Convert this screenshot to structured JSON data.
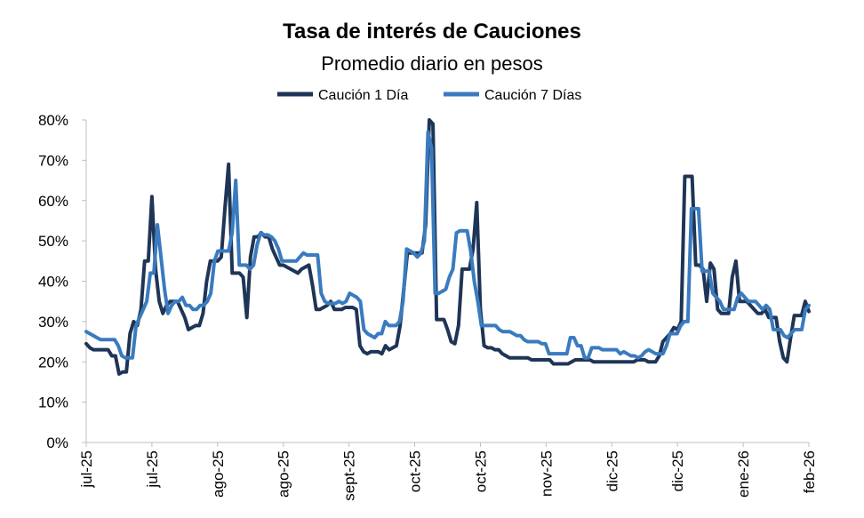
{
  "chart_data": {
    "type": "line",
    "title": "Tasa de interés de Cauciones",
    "subtitle": "Promedio diario en pesos",
    "xlabel": "",
    "ylabel": "",
    "ylim": [
      0,
      80
    ],
    "y_ticks": [
      "0%",
      "10%",
      "20%",
      "30%",
      "40%",
      "50%",
      "60%",
      "70%",
      "80%"
    ],
    "x_ticks": [
      "jul-25",
      "jul-25",
      "ago-25",
      "ago-25",
      "sept-25",
      "oct-25",
      "oct-25",
      "nov-25",
      "dic-25",
      "dic-25",
      "ene-26",
      "feb-26"
    ],
    "grid": false,
    "legend": "top",
    "series": [
      {
        "name": "Caución 1 Día",
        "color": "#1f3557",
        "values": [
          24.5,
          23.5,
          23,
          23,
          23,
          23,
          23,
          21.5,
          21.5,
          17,
          17.5,
          17.5,
          27,
          30,
          29,
          33,
          45,
          45,
          61,
          43,
          35,
          32,
          34,
          35,
          35,
          35,
          33,
          31,
          28,
          28.5,
          29,
          29,
          32,
          40,
          45,
          45,
          45,
          46,
          58,
          69,
          42,
          42,
          42,
          41,
          31,
          46,
          51,
          51,
          52,
          51,
          51,
          48,
          46,
          44,
          44,
          43.5,
          43,
          42.5,
          42,
          43,
          43.5,
          44,
          39,
          33,
          33,
          33.5,
          34,
          35,
          33,
          33,
          33,
          33.5,
          33.5,
          33.5,
          33,
          24,
          22.5,
          22,
          22.5,
          22.5,
          22.5,
          22,
          24,
          23,
          23.5,
          24,
          29,
          38,
          47,
          47,
          47,
          47,
          47,
          54,
          80,
          79,
          30.5,
          30.5,
          30.5,
          28,
          25,
          24.5,
          29,
          43,
          43,
          43,
          48,
          59.5,
          33,
          24,
          23.5,
          23.5,
          23,
          23,
          22,
          21.5,
          21,
          21,
          21,
          21,
          21,
          21,
          20.5,
          20.5,
          20.5,
          20.5,
          20.5,
          20.5,
          19.5,
          19.5,
          19.5,
          19.5,
          19.5,
          20,
          20.5,
          20.5,
          20.5,
          20.5,
          20.5,
          20,
          20,
          20,
          20,
          20,
          20,
          20,
          20,
          20,
          20,
          20,
          20,
          20.5,
          20.5,
          20.5,
          20,
          20,
          20,
          21.5,
          25,
          26,
          27,
          28.5,
          28,
          30,
          66,
          66,
          66,
          44,
          44,
          43,
          35,
          44.5,
          43,
          33,
          32,
          32,
          32,
          41,
          45,
          35,
          35,
          35,
          34,
          33,
          32,
          32,
          33,
          31,
          31,
          31,
          25,
          21,
          20,
          26,
          31.5,
          31.5,
          31.5,
          35,
          32.5
        ]
      },
      {
        "name": "Caución 7 Días",
        "color": "#3a7bbf",
        "values": [
          27.5,
          27,
          26.5,
          26,
          25.5,
          25.5,
          25.5,
          25.5,
          25.5,
          24,
          21.5,
          21,
          21,
          21,
          29,
          31,
          33,
          35,
          42,
          42,
          54,
          46,
          38,
          32,
          34,
          35,
          35,
          36,
          34,
          34,
          33,
          33,
          34,
          34,
          35,
          37,
          45,
          47.5,
          47.5,
          47.5,
          47.5,
          52,
          65,
          44,
          44,
          44,
          43,
          44,
          49,
          52,
          51.5,
          51.5,
          51,
          50,
          48,
          45,
          45,
          45,
          45,
          45,
          46,
          47,
          46.5,
          46.5,
          46.5,
          46.5,
          37,
          35,
          34.5,
          34.5,
          34.5,
          35,
          34.5,
          35,
          37,
          36.5,
          36,
          35,
          28,
          27,
          26.5,
          26,
          27,
          27,
          30,
          29,
          29,
          29,
          30,
          35,
          48,
          47.5,
          47,
          46,
          47,
          50,
          77,
          73,
          37,
          37,
          37.5,
          38,
          41,
          43,
          52,
          52.5,
          52.5,
          52.5,
          47.5,
          40,
          35,
          29,
          29,
          29,
          29,
          29,
          28,
          27.5,
          27.5,
          27.5,
          27,
          26.5,
          26.5,
          25.5,
          25,
          25,
          25,
          25,
          24.5,
          24.5,
          22,
          22,
          22,
          22,
          22,
          22,
          26,
          26,
          24,
          24,
          21,
          21,
          23.5,
          23.5,
          23.5,
          23,
          23,
          23,
          23,
          23,
          22,
          22.5,
          22,
          21.5,
          21.5,
          21,
          21.5,
          22.5,
          23,
          22.5,
          22,
          22,
          22,
          24,
          27,
          27,
          27,
          29,
          30,
          30,
          58,
          58,
          58,
          42.5,
          42.5,
          42.5,
          37,
          36,
          35,
          33,
          33,
          33,
          33,
          36,
          37,
          36,
          35,
          35,
          35,
          34,
          33,
          34,
          33,
          28,
          28,
          28,
          26.5,
          26,
          27,
          28,
          28,
          28,
          33,
          34
        ]
      }
    ]
  }
}
